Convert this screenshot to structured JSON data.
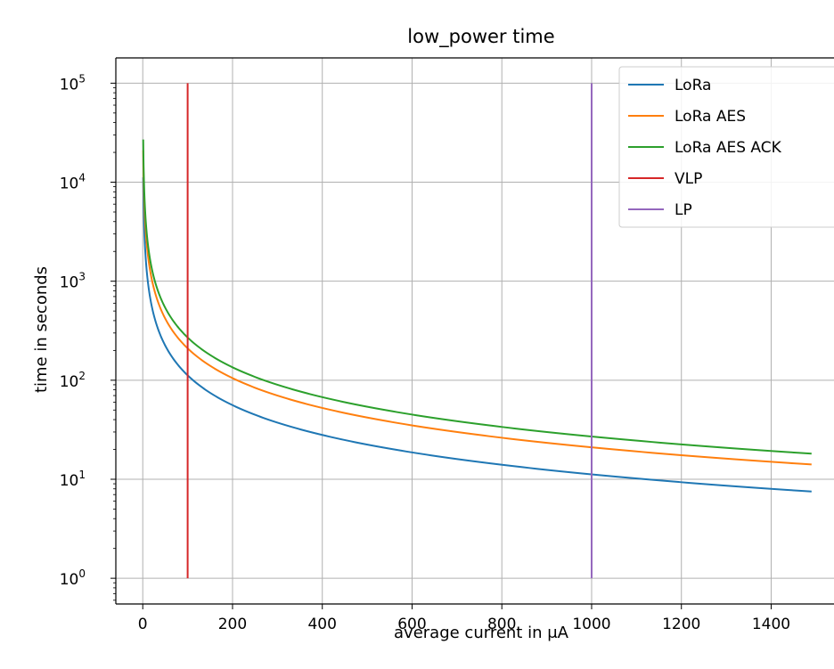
{
  "chart_data": {
    "type": "line",
    "title": "low_power time",
    "xlabel": "average current in μA",
    "ylabel": "time in seconds",
    "xlim": [
      -60,
      1540
    ],
    "ylim": [
      0.55,
      180000
    ],
    "yscale": "log",
    "grid": true,
    "legend_position": "top-right",
    "x_ticks": [
      0,
      200,
      400,
      600,
      800,
      1000,
      1200,
      1400
    ],
    "y_ticks": [
      {
        "value": 1,
        "base": "10",
        "exp": "0"
      },
      {
        "value": 10,
        "base": "10",
        "exp": "1"
      },
      {
        "value": 100,
        "base": "10",
        "exp": "2"
      },
      {
        "value": 1000,
        "base": "10",
        "exp": "3"
      },
      {
        "value": 10000,
        "base": "10",
        "exp": "4"
      },
      {
        "value": 100000,
        "base": "10",
        "exp": "5"
      }
    ],
    "series": [
      {
        "name": "LoRa",
        "color": "#1f77b4",
        "kind": "curve",
        "k": 11200,
        "x_start": 1,
        "x_end": 1490
      },
      {
        "name": "LoRa AES",
        "color": "#ff7f0e",
        "kind": "curve",
        "k": 21000,
        "x_start": 1,
        "x_end": 1490
      },
      {
        "name": "LoRa AES ACK",
        "color": "#2ca02c",
        "kind": "curve",
        "k": 27000,
        "x_start": 1,
        "x_end": 1490
      },
      {
        "name": "VLP",
        "color": "#d62728",
        "kind": "vline",
        "x": 100,
        "y": [
          1,
          100000
        ]
      },
      {
        "name": "LP",
        "color": "#9467bd",
        "kind": "vline",
        "x": 1000,
        "y": [
          1,
          100000
        ]
      }
    ]
  }
}
